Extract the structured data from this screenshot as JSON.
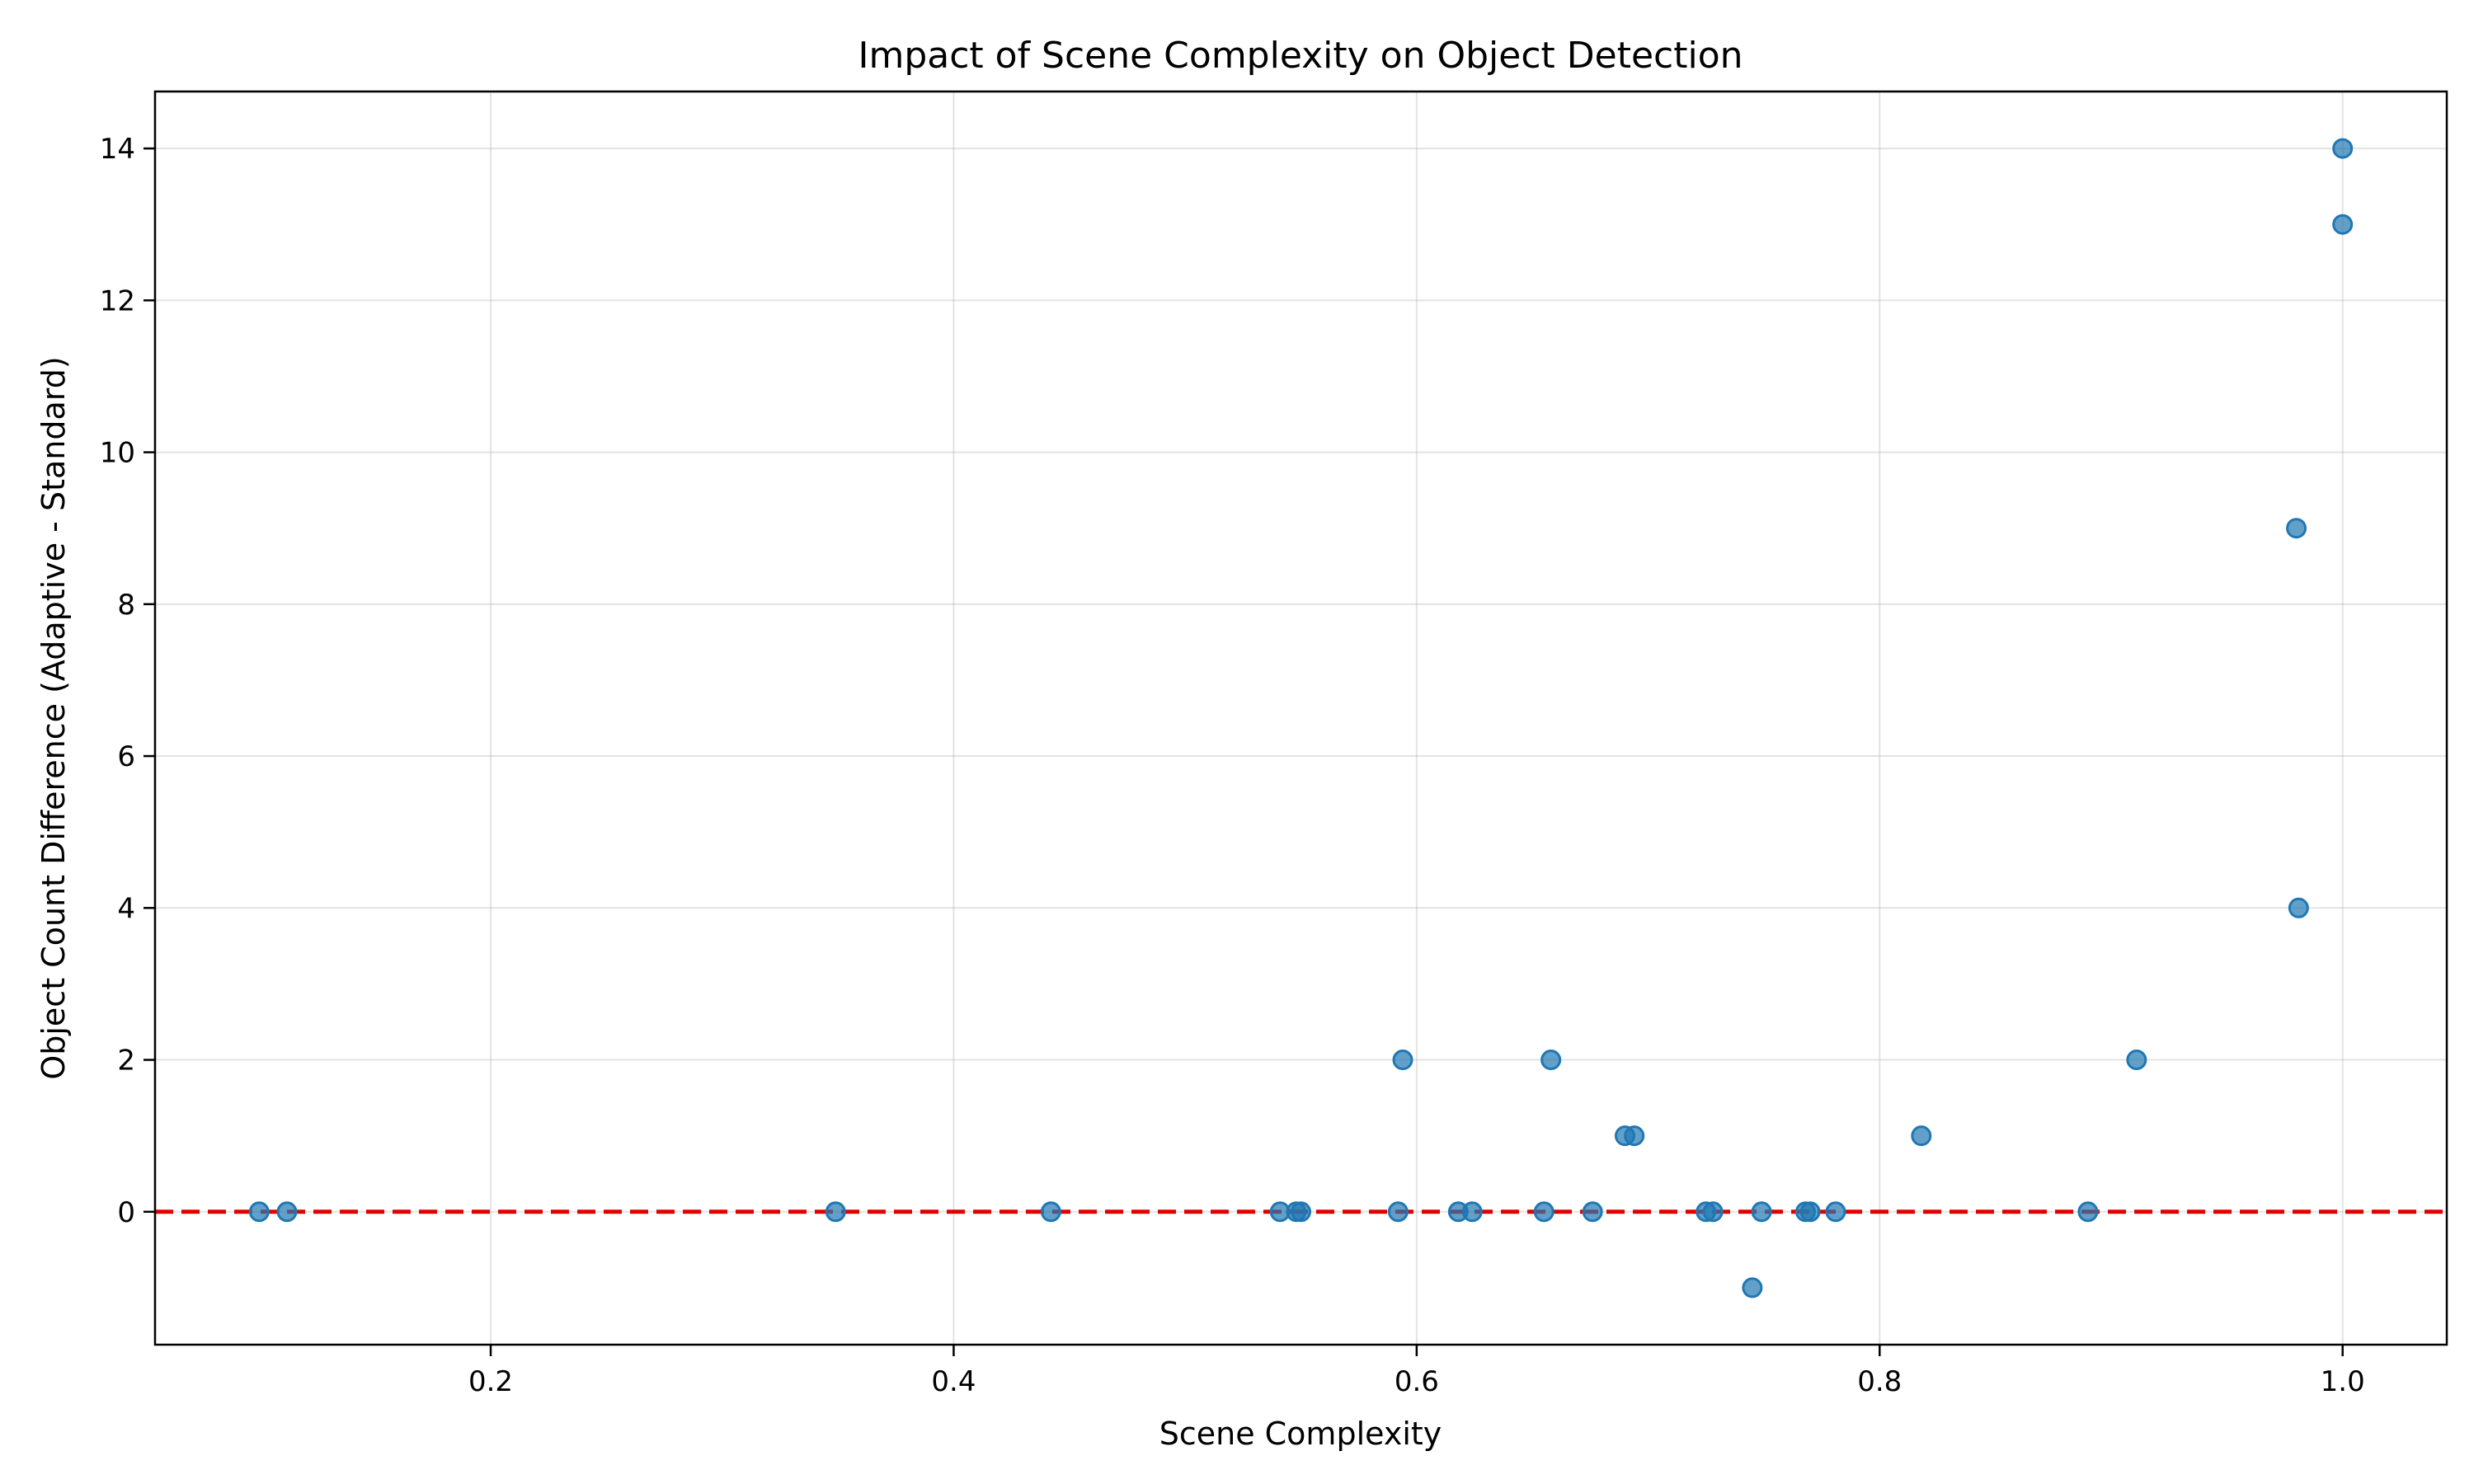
{
  "chart_data": {
    "type": "scatter",
    "title": "Impact of Scene Complexity on Object Detection",
    "xlabel": "Scene Complexity",
    "ylabel": "Object Count Difference (Adaptive - Standard)",
    "xlim": [
      0.055,
      1.045
    ],
    "ylim": [
      -1.75,
      14.75
    ],
    "xticks": [
      0.2,
      0.4,
      0.6,
      0.8,
      1.0
    ],
    "xtick_labels": [
      "0.2",
      "0.4",
      "0.6",
      "0.8",
      "1.0"
    ],
    "yticks": [
      0,
      2,
      4,
      6,
      8,
      10,
      12,
      14
    ],
    "ytick_labels": [
      "0",
      "2",
      "4",
      "6",
      "8",
      "10",
      "12",
      "14"
    ],
    "grid": true,
    "reference_line": {
      "y": 0,
      "color": "#e00000",
      "style": "dashed"
    },
    "point_color": "#1f77b4",
    "points": [
      {
        "x": 0.1,
        "y": 0
      },
      {
        "x": 0.112,
        "y": 0
      },
      {
        "x": 0.349,
        "y": 0
      },
      {
        "x": 0.442,
        "y": 0
      },
      {
        "x": 0.541,
        "y": 0
      },
      {
        "x": 0.548,
        "y": 0
      },
      {
        "x": 0.55,
        "y": 0
      },
      {
        "x": 0.592,
        "y": 0
      },
      {
        "x": 0.594,
        "y": 2
      },
      {
        "x": 0.618,
        "y": 0
      },
      {
        "x": 0.624,
        "y": 0
      },
      {
        "x": 0.655,
        "y": 0
      },
      {
        "x": 0.658,
        "y": 2
      },
      {
        "x": 0.676,
        "y": 0
      },
      {
        "x": 0.69,
        "y": 1
      },
      {
        "x": 0.694,
        "y": 1
      },
      {
        "x": 0.725,
        "y": 0
      },
      {
        "x": 0.728,
        "y": 0
      },
      {
        "x": 0.745,
        "y": -1
      },
      {
        "x": 0.749,
        "y": 0
      },
      {
        "x": 0.768,
        "y": 0
      },
      {
        "x": 0.77,
        "y": 0
      },
      {
        "x": 0.781,
        "y": 0
      },
      {
        "x": 0.818,
        "y": 1
      },
      {
        "x": 0.89,
        "y": 0
      },
      {
        "x": 0.911,
        "y": 2
      },
      {
        "x": 0.98,
        "y": 9
      },
      {
        "x": 0.981,
        "y": 4
      },
      {
        "x": 1.0,
        "y": 14
      },
      {
        "x": 1.0,
        "y": 13
      }
    ]
  }
}
